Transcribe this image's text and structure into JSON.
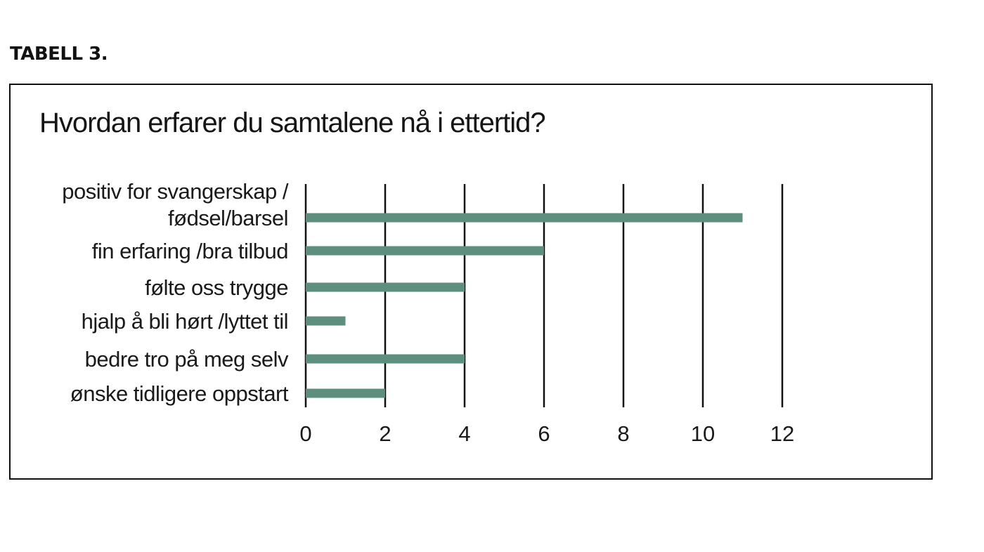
{
  "header": {
    "table_label": "TABELL 3."
  },
  "chart_data": {
    "type": "bar",
    "orientation": "horizontal",
    "title": "Hvordan erfarer du samtalene nå i ettertid?",
    "categories": [
      [
        "positiv for svangerskap /",
        "fødsel/barsel"
      ],
      [
        "fin erfaring /bra tilbud"
      ],
      [
        "følte oss trygge"
      ],
      [
        "hjalp å bli hørt /lyttet til"
      ],
      [
        "bedre tro på meg selv"
      ],
      [
        "ønske tidligere oppstart"
      ]
    ],
    "values": [
      11,
      6,
      4,
      1,
      4,
      2
    ],
    "xlim": [
      0,
      12
    ],
    "xticks": [
      0,
      2,
      4,
      6,
      8,
      10,
      12
    ],
    "xlabel": "",
    "ylabel": "",
    "grid": true,
    "bar_color": "#5e8f7e",
    "grid_color": "#111111"
  }
}
